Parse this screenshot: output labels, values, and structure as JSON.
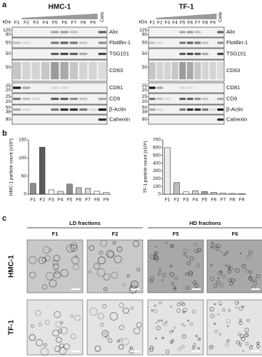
{
  "panel_labels": [
    "a",
    "b",
    "c"
  ],
  "blots": {
    "unit": "kDa",
    "lanes": [
      "F1",
      "F2",
      "F3",
      "F4",
      "F5",
      "F6",
      "F7",
      "F8",
      "F9",
      "Cells"
    ],
    "panels": [
      {
        "title": "HMC-1"
      },
      {
        "title": "TF-1"
      }
    ],
    "rows": [
      {
        "name": "Alix",
        "kda": [
          "125",
          "90"
        ]
      },
      {
        "name": "Flotillin-1",
        "kda": [
          "50"
        ]
      },
      {
        "name": "TSG101",
        "kda": [
          "50"
        ]
      },
      {
        "name": "CD63",
        "kda": [
          "50"
        ]
      },
      {
        "name": "CD81",
        "kda": [
          "25",
          "20"
        ]
      },
      {
        "name": "CD9",
        "kda": [
          "25",
          "20"
        ]
      },
      {
        "name": "β-Actin",
        "kda": [
          "50",
          "38"
        ]
      },
      {
        "name": "Calnexin",
        "kda": [
          "90"
        ]
      }
    ]
  },
  "chart_data": [
    {
      "type": "bar",
      "ylabel": "HMC-1 particle count (x10⁸)",
      "categories": [
        "F1",
        "F2",
        "F3",
        "F4",
        "F5",
        "F6",
        "F7",
        "F8",
        "F9"
      ],
      "values": [
        30,
        130,
        12,
        8,
        28,
        18,
        16,
        8,
        5
      ],
      "colors": [
        "#8c8c8c",
        "#5a5a5a",
        "#ffffff",
        "#e0e0e0",
        "#8c8c8c",
        "#bdbdbd",
        "#d9d9d9",
        "#ffffff",
        "#ffffff"
      ],
      "ylim": [
        0,
        150
      ],
      "yticks": [
        0,
        50,
        100,
        150
      ]
    },
    {
      "type": "bar",
      "ylabel": "TF-1 particle count (x10⁸)",
      "categories": [
        "F1",
        "F2",
        "F3",
        "F4",
        "F5",
        "F6",
        "F7",
        "F8",
        "F9"
      ],
      "values": [
        600,
        150,
        30,
        45,
        35,
        25,
        15,
        10,
        5
      ],
      "colors": [
        "#ececec",
        "#bdbdbd",
        "#ffffff",
        "#d0d0d0",
        "#a0a0a0",
        "#d0d0d0",
        "#ffffff",
        "#ffffff",
        "#ffffff"
      ],
      "ylim": [
        0,
        700
      ],
      "yticks": [
        0,
        100,
        200,
        300,
        400,
        500,
        600,
        700
      ]
    }
  ],
  "em": {
    "groups": [
      {
        "label": "LD fractions",
        "columns": [
          "F1",
          "F2"
        ]
      },
      {
        "label": "HD fractions",
        "columns": [
          "F5",
          "F6"
        ]
      }
    ],
    "rows": [
      "HMC-1",
      "TF-1"
    ]
  }
}
